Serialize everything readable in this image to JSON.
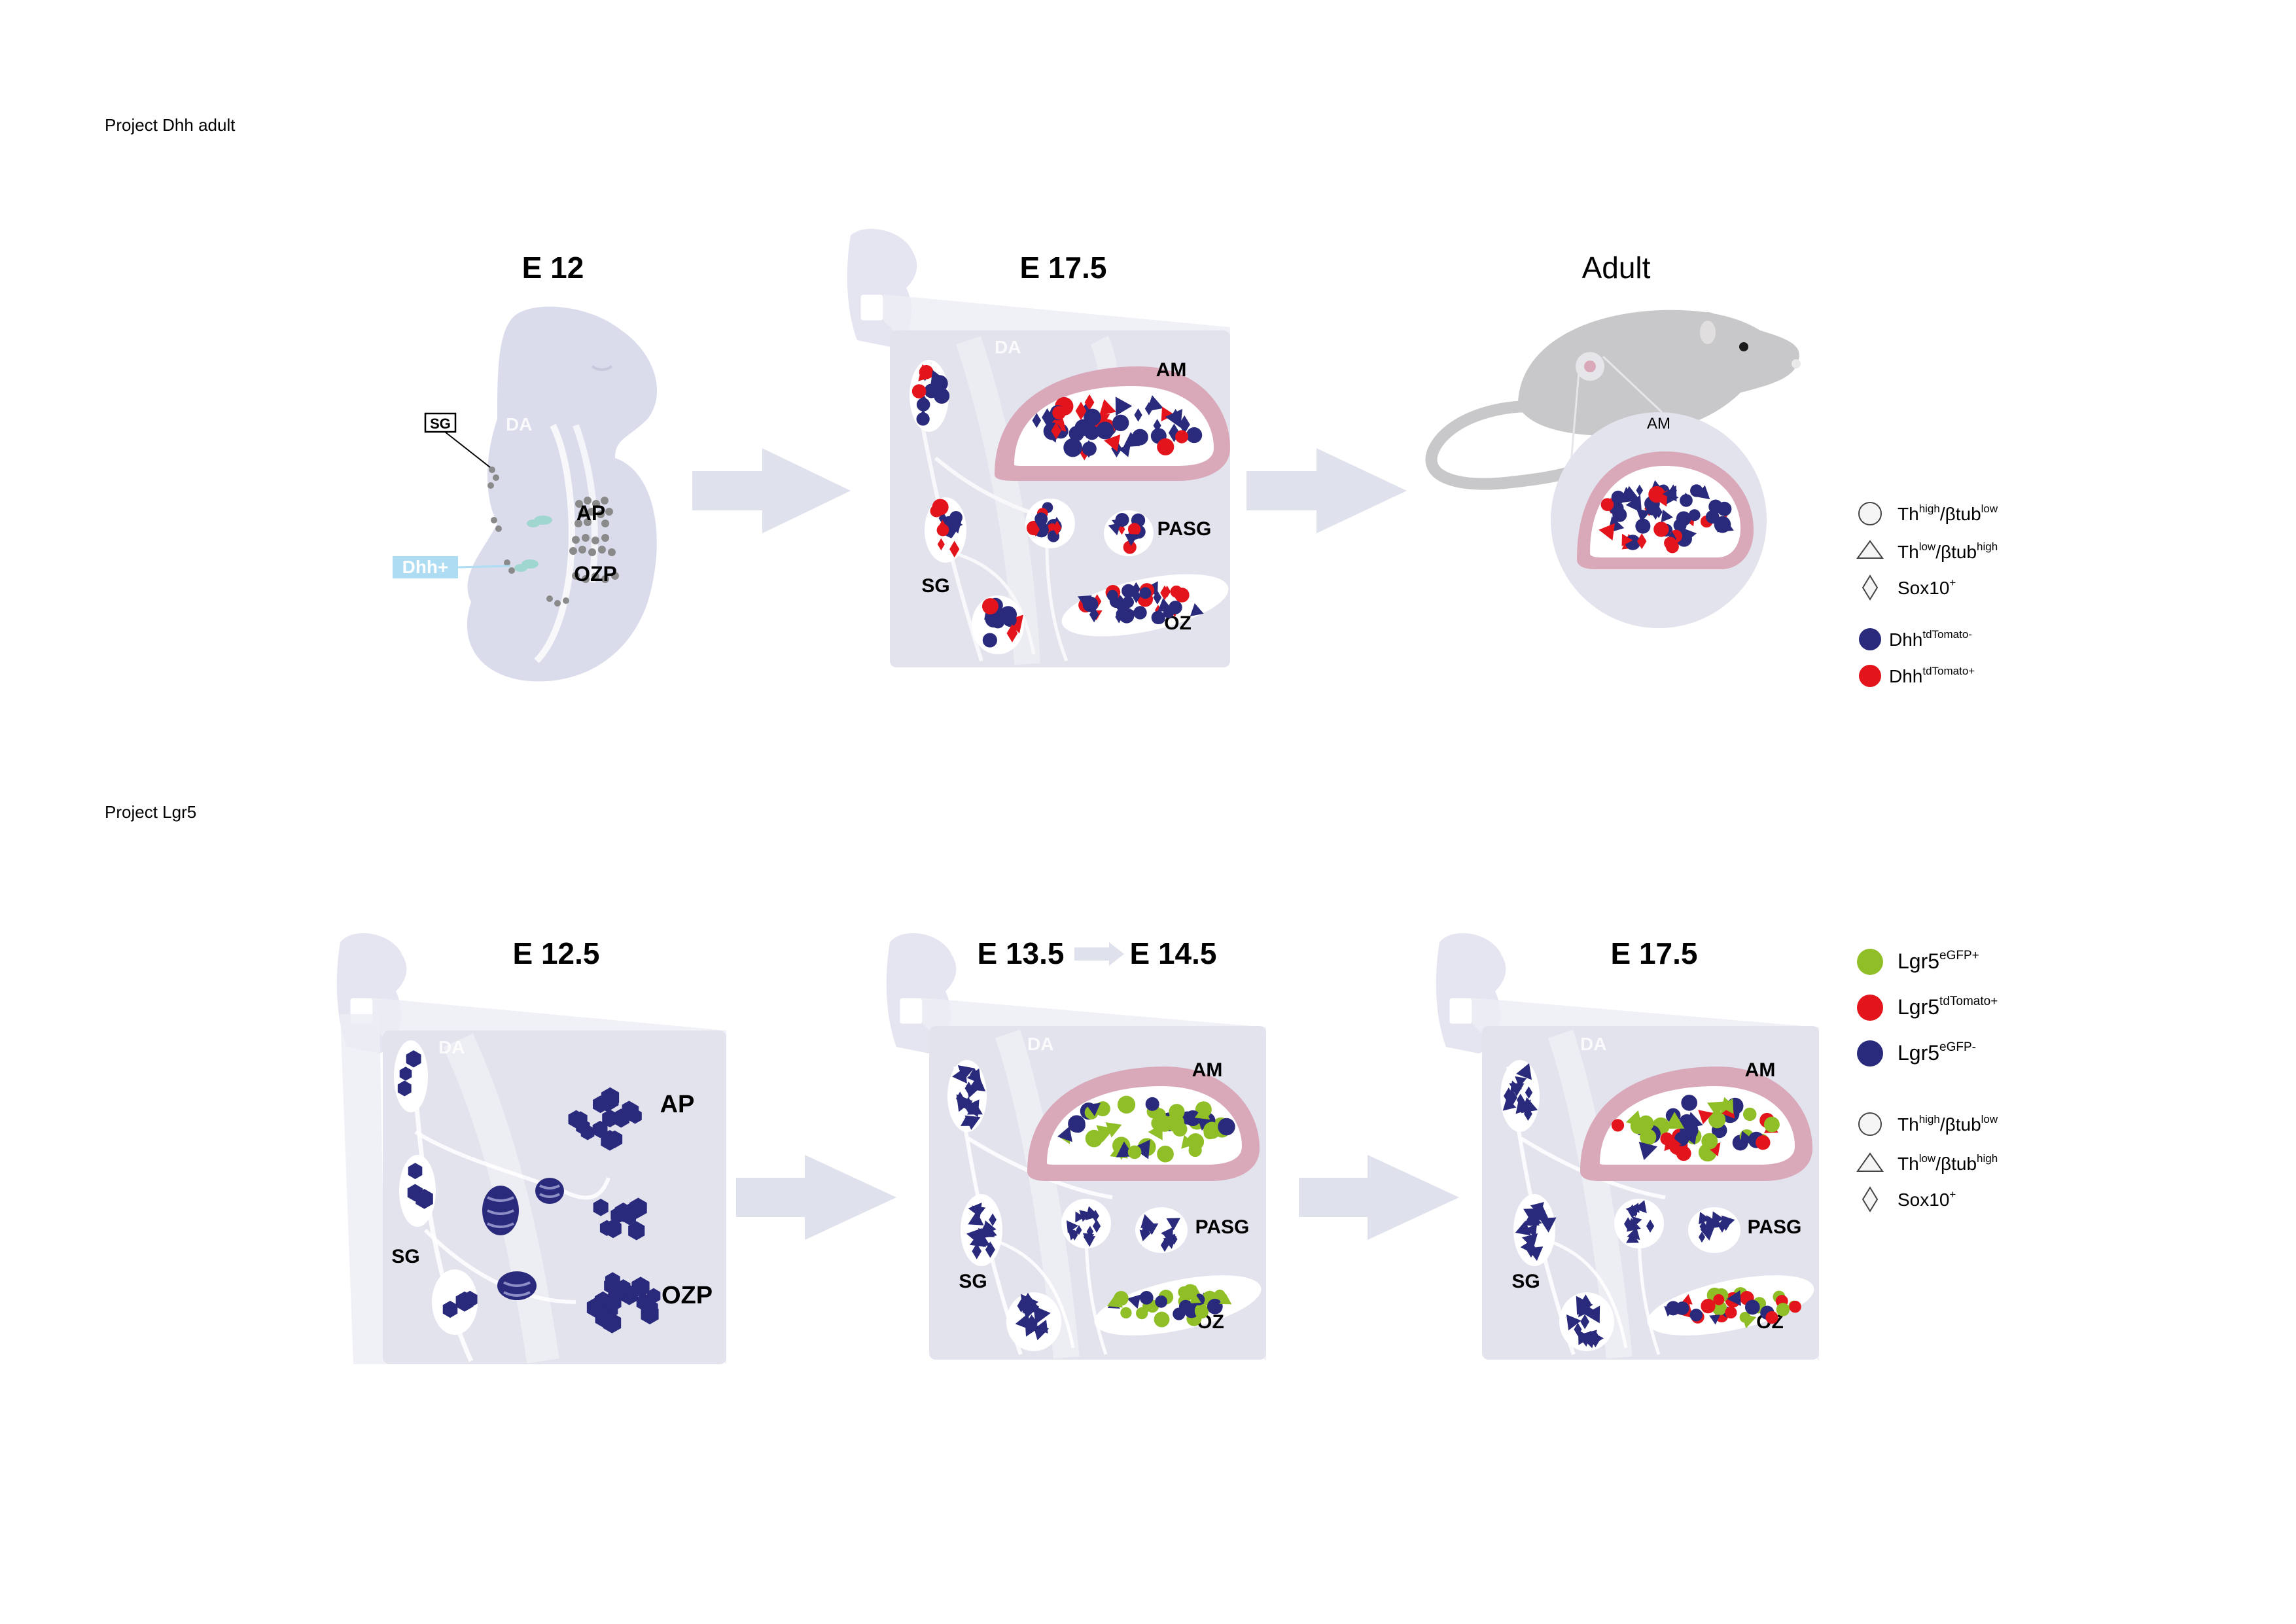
{
  "projects": [
    {
      "label": "Project Dhh adult"
    },
    {
      "label": "Project Lgr5"
    }
  ],
  "dhh_panels": {
    "e12": {
      "title": "E 12",
      "sg": "SG",
      "da": "DA",
      "ap": "AP",
      "ozp": "OZP",
      "marker": "Dhh+"
    },
    "e175": {
      "title": "E 17.5",
      "da": "DA",
      "am": "AM",
      "sg": "SG",
      "pasg": "PASG",
      "oz": "OZ"
    },
    "adult": {
      "title": "Adult",
      "am": "AM"
    }
  },
  "dhh_legend": {
    "shapes": [
      {
        "base": "Th",
        "sup1": "high",
        "mid": "/βtub",
        "sup2": "low",
        "icon": "circle-outline"
      },
      {
        "base": "Th",
        "sup1": "low",
        "mid": "/βtub",
        "sup2": "high",
        "icon": "triangle-outline"
      },
      {
        "base": "Sox10",
        "sup1": "+",
        "mid": "",
        "sup2": "",
        "icon": "diamond-outline"
      }
    ],
    "colors": [
      {
        "base": "Dhh",
        "sup": "tdTomato-",
        "color": "#2a2a7c"
      },
      {
        "base": "Dhh",
        "sup": "tdTomato+",
        "color": "#e3141c"
      }
    ]
  },
  "lgr5_panels": {
    "e125": {
      "title": "E 12.5",
      "da": "DA",
      "ap": "AP",
      "sg": "SG",
      "ozp": "OZP"
    },
    "e135": {
      "title_a": "E 13.5",
      "title_b": "E 14.5",
      "da": "DA",
      "am": "AM",
      "sg": "SG",
      "pasg": "PASG",
      "oz": "OZ"
    },
    "e175": {
      "title": "E 17.5",
      "da": "DA",
      "am": "AM",
      "sg": "SG",
      "pasg": "PASG",
      "oz": "OZ"
    }
  },
  "lgr5_legend": {
    "colors": [
      {
        "base": "Lgr5",
        "sup": "eGFP+",
        "color": "#8fbe26"
      },
      {
        "base": "Lgr5",
        "sup": "tdTomato+",
        "color": "#e3141c"
      },
      {
        "base": "Lgr5",
        "sup": "eGFP-",
        "color": "#2a2a7c"
      }
    ],
    "shapes": [
      {
        "base": "Th",
        "sup1": "high",
        "mid": "/βtub",
        "sup2": "low",
        "icon": "circle-outline"
      },
      {
        "base": "Th",
        "sup1": "low",
        "mid": "/βtub",
        "sup2": "high",
        "icon": "triangle-outline"
      },
      {
        "base": "Sox10",
        "sup1": "+",
        "mid": "",
        "sup2": "",
        "icon": "diamond-outline"
      }
    ]
  },
  "palette": {
    "navy": "#2a2a7c",
    "red": "#e3141c",
    "green": "#8fbe26",
    "panel": "#e3e3ee",
    "embryo": "#dadcec",
    "medulla": "#d9a9b9",
    "arrow": "#dfe1ec",
    "mouse": "#c8c8ca",
    "dhh_label": "#aedcf2"
  }
}
